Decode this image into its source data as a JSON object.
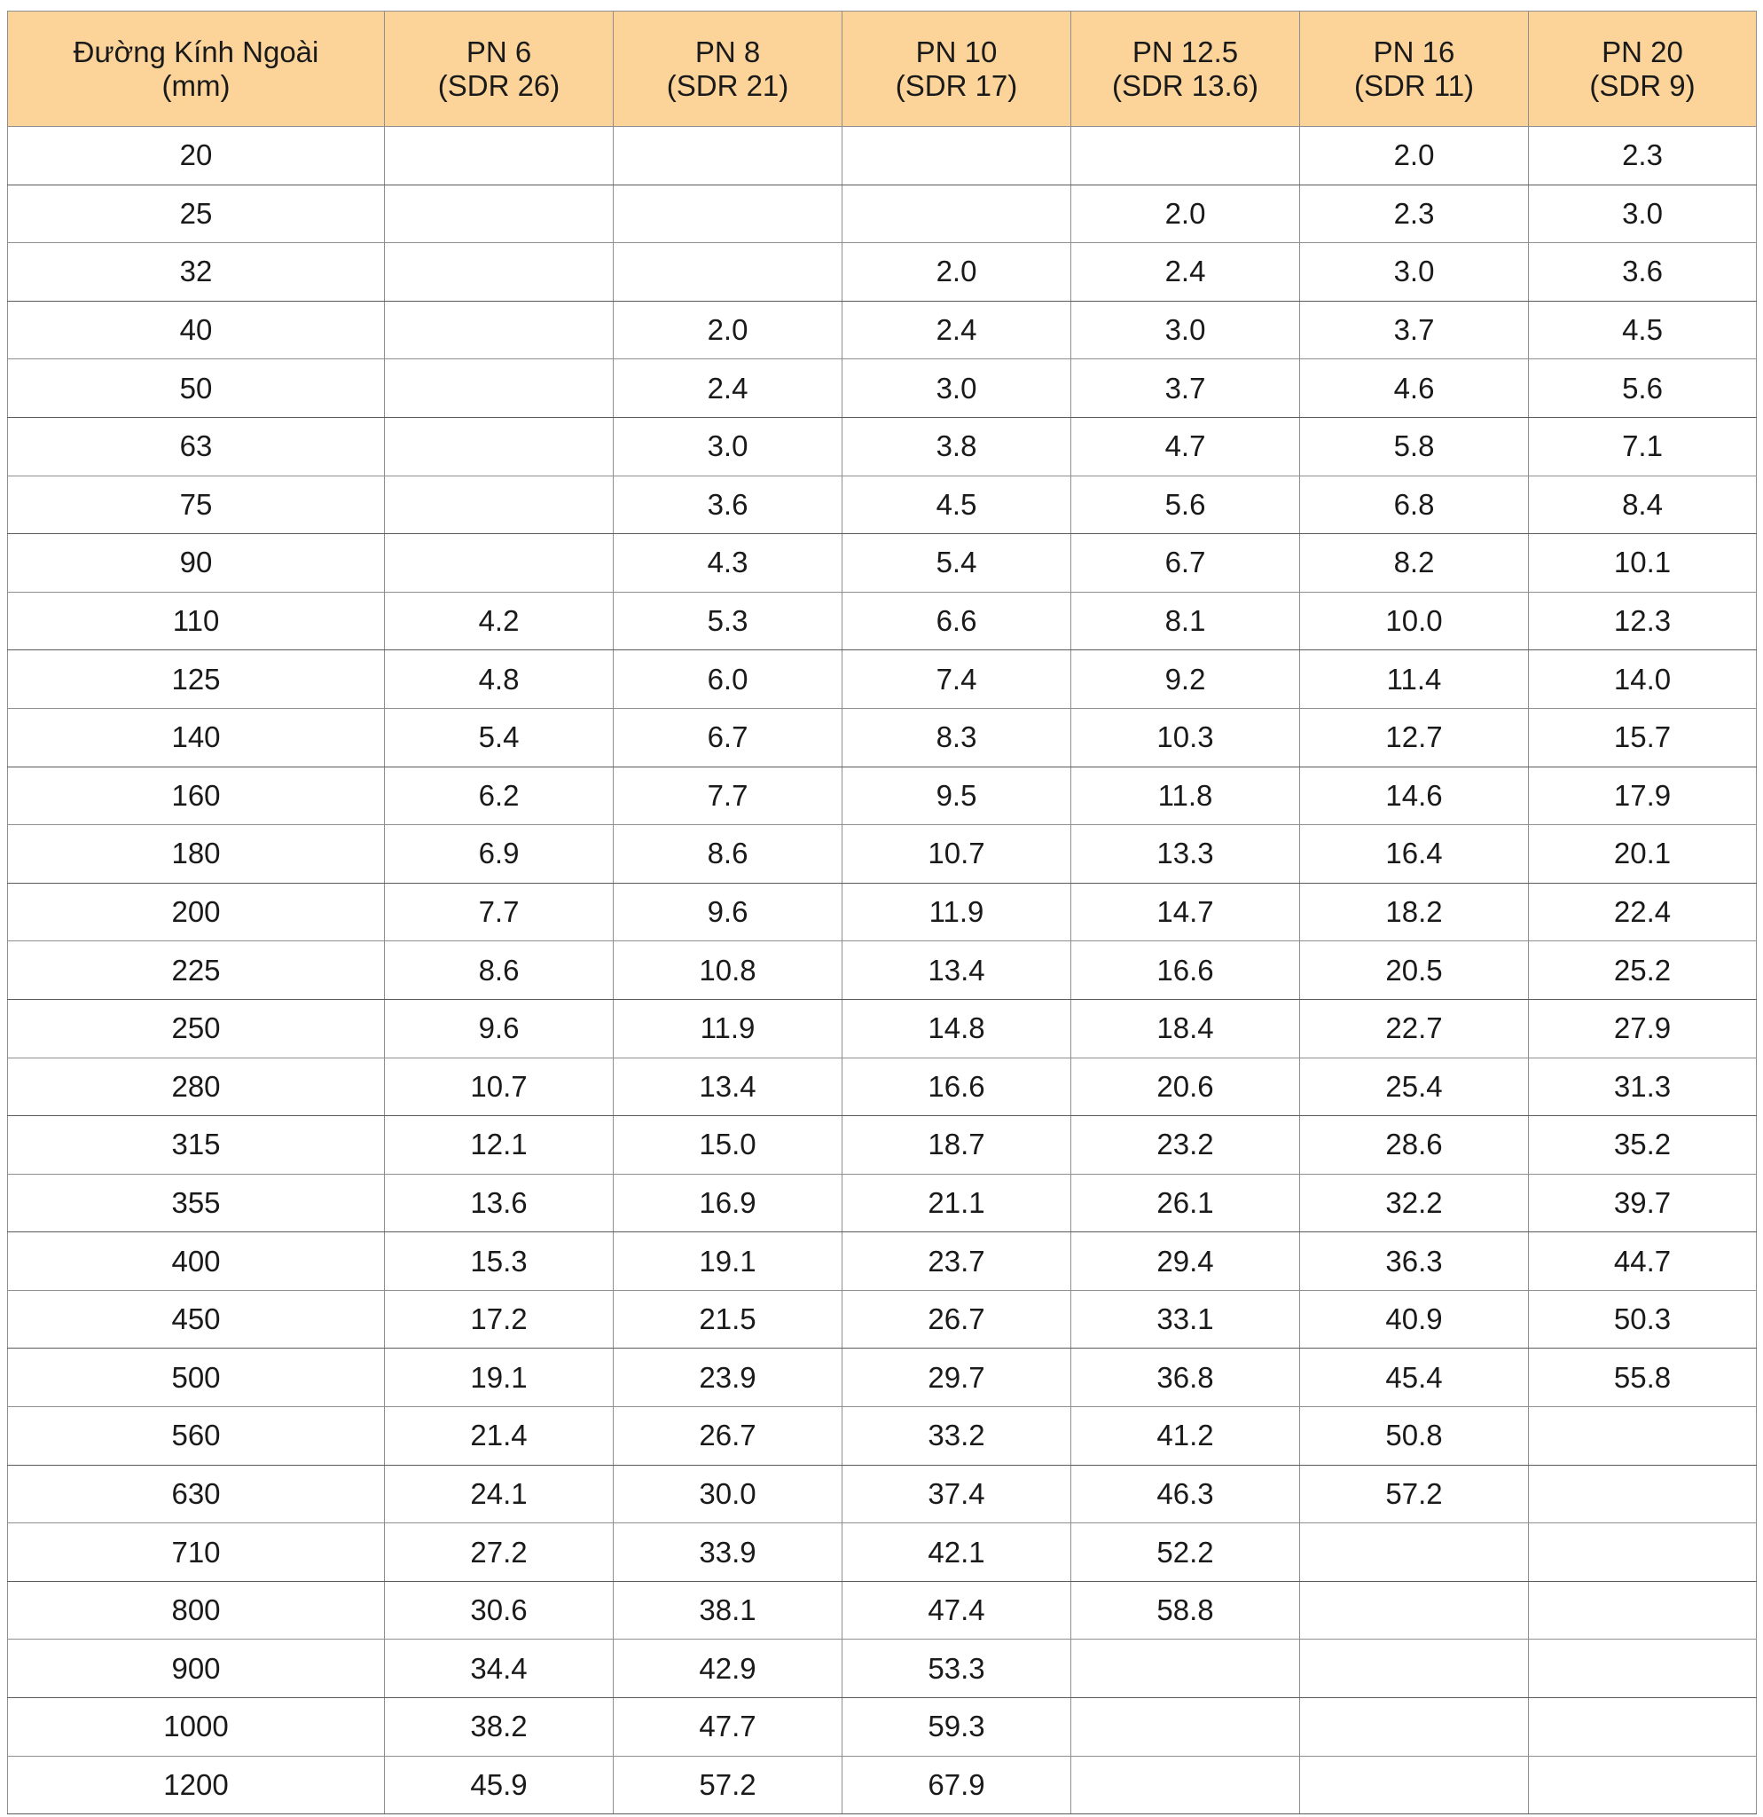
{
  "table": {
    "headers": [
      {
        "line1": "Đường Kính Ngoài",
        "line2": "(mm)"
      },
      {
        "line1": "PN 6",
        "line2": "(SDR 26)"
      },
      {
        "line1": "PN 8",
        "line2": "(SDR 21)"
      },
      {
        "line1": "PN 10",
        "line2": "(SDR 17)"
      },
      {
        "line1": "PN 12.5",
        "line2": "(SDR 13.6)"
      },
      {
        "line1": "PN 16",
        "line2": "(SDR 11)"
      },
      {
        "line1": "PN 20",
        "line2": "(SDR 9)"
      }
    ],
    "rows": [
      [
        "20",
        "",
        "",
        "",
        "",
        "2.0",
        "2.3"
      ],
      [
        "25",
        "",
        "",
        "",
        "2.0",
        "2.3",
        "3.0"
      ],
      [
        "32",
        "",
        "",
        "2.0",
        "2.4",
        "3.0",
        "3.6"
      ],
      [
        "40",
        "",
        "2.0",
        "2.4",
        "3.0",
        "3.7",
        "4.5"
      ],
      [
        "50",
        "",
        "2.4",
        "3.0",
        "3.7",
        "4.6",
        "5.6"
      ],
      [
        "63",
        "",
        "3.0",
        "3.8",
        "4.7",
        "5.8",
        "7.1"
      ],
      [
        "75",
        "",
        "3.6",
        "4.5",
        "5.6",
        "6.8",
        "8.4"
      ],
      [
        "90",
        "",
        "4.3",
        "5.4",
        "6.7",
        "8.2",
        "10.1"
      ],
      [
        "110",
        "4.2",
        "5.3",
        "6.6",
        "8.1",
        "10.0",
        "12.3"
      ],
      [
        "125",
        "4.8",
        "6.0",
        "7.4",
        "9.2",
        "11.4",
        "14.0"
      ],
      [
        "140",
        "5.4",
        "6.7",
        "8.3",
        "10.3",
        "12.7",
        "15.7"
      ],
      [
        "160",
        "6.2",
        "7.7",
        "9.5",
        "11.8",
        "14.6",
        "17.9"
      ],
      [
        "180",
        "6.9",
        "8.6",
        "10.7",
        "13.3",
        "16.4",
        "20.1"
      ],
      [
        "200",
        "7.7",
        "9.6",
        "11.9",
        "14.7",
        "18.2",
        "22.4"
      ],
      [
        "225",
        "8.6",
        "10.8",
        "13.4",
        "16.6",
        "20.5",
        "25.2"
      ],
      [
        "250",
        "9.6",
        "11.9",
        "14.8",
        "18.4",
        "22.7",
        "27.9"
      ],
      [
        "280",
        "10.7",
        "13.4",
        "16.6",
        "20.6",
        "25.4",
        "31.3"
      ],
      [
        "315",
        "12.1",
        "15.0",
        "18.7",
        "23.2",
        "28.6",
        "35.2"
      ],
      [
        "355",
        "13.6",
        "16.9",
        "21.1",
        "26.1",
        "32.2",
        "39.7"
      ],
      [
        "400",
        "15.3",
        "19.1",
        "23.7",
        "29.4",
        "36.3",
        "44.7"
      ],
      [
        "450",
        "17.2",
        "21.5",
        "26.7",
        "33.1",
        "40.9",
        "50.3"
      ],
      [
        "500",
        "19.1",
        "23.9",
        "29.7",
        "36.8",
        "45.4",
        "55.8"
      ],
      [
        "560",
        "21.4",
        "26.7",
        "33.2",
        "41.2",
        "50.8",
        ""
      ],
      [
        "630",
        "24.1",
        "30.0",
        "37.4",
        "46.3",
        "57.2",
        ""
      ],
      [
        "710",
        "27.2",
        "33.9",
        "42.1",
        "52.2",
        "",
        ""
      ],
      [
        "800",
        "30.6",
        "38.1",
        "47.4",
        "58.8",
        "",
        ""
      ],
      [
        "900",
        "34.4",
        "42.9",
        "53.3",
        "",
        "",
        ""
      ],
      [
        "1000",
        "38.2",
        "47.7",
        "59.3",
        "",
        "",
        ""
      ],
      [
        "1200",
        "45.9",
        "57.2",
        "67.9",
        "",
        "",
        ""
      ]
    ]
  }
}
